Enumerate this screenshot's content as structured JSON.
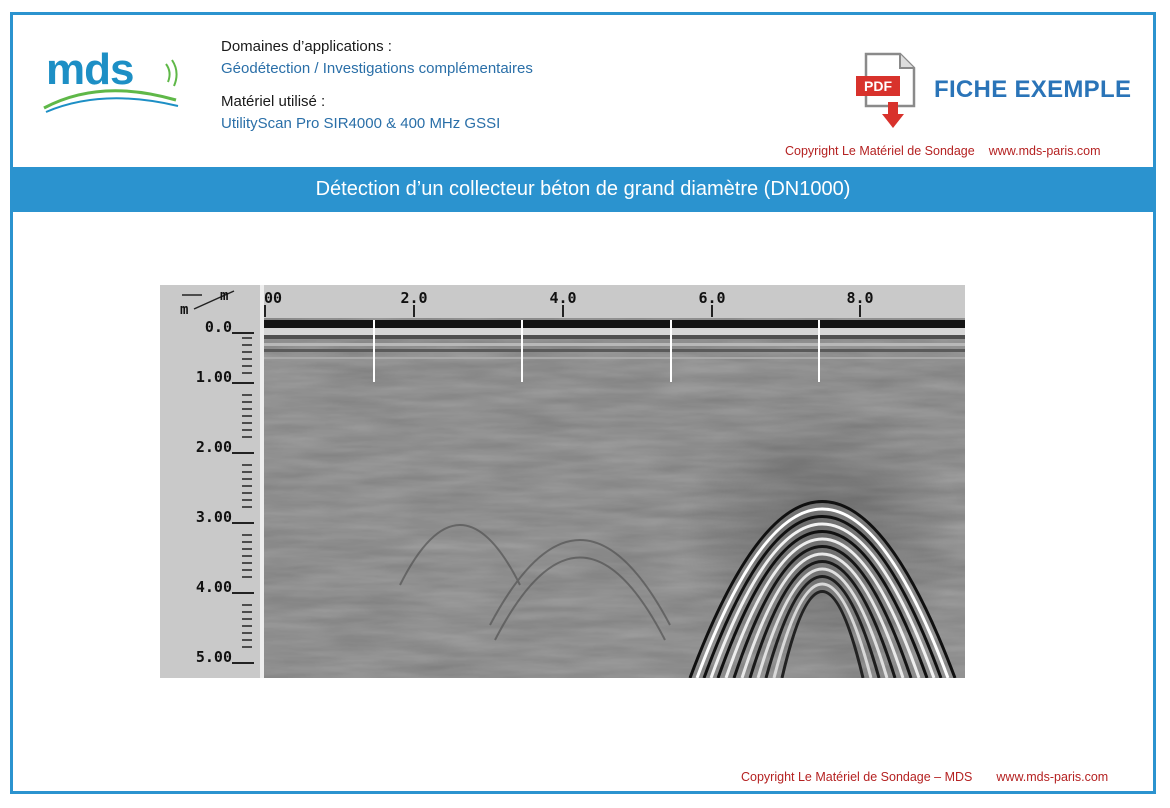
{
  "header": {
    "logo_text": "mds",
    "domains_label": "Domaines d’applications :",
    "domains_value": "Géodétection / Investigations complémentaires",
    "material_label": "Matériel utilisé :",
    "material_value": "UtilityScan Pro SIR4000 & 400 MHz GSSI",
    "pdf_label": "PDF",
    "fiche_title": "FICHE EXEMPLE",
    "copyright": "Copyright Le Matériel de Sondage",
    "website": "www.mds-paris.com"
  },
  "banner": {
    "title": "Détection d’un collecteur béton de grand diamètre (DN1000)"
  },
  "radargram": {
    "x_unit": "m",
    "y_unit": "m",
    "x_ticks": [
      "00",
      "2.0",
      "4.0",
      "6.0",
      "8.0"
    ],
    "y_ticks": [
      "0.0",
      "1.00",
      "2.00",
      "3.00",
      "4.00",
      "5.00"
    ],
    "colors": {
      "background": "#7e7e7e",
      "axis_panel": "#c9c9c9"
    }
  },
  "footer": {
    "copyright": "Copyright Le Matériel de Sondage – MDS",
    "website": "www.mds-paris.com"
  },
  "colors": {
    "frame": "#2b93cf",
    "banner": "#2b93cf",
    "copyright": "#b52222",
    "title": "#2a74b8"
  }
}
